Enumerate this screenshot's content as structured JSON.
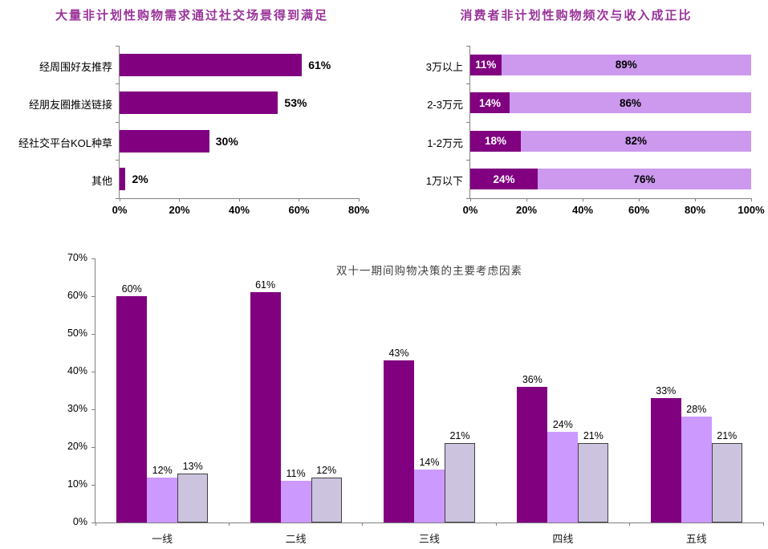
{
  "colors": {
    "chart_title_purple": "#993399",
    "dark_purple": "#800080",
    "light_purple": "#CC99FF",
    "stacked_light_purple": "#CC99EE",
    "gray_lavender": "#CCC3DF",
    "gray_bar_border": "#404040",
    "axis_gray": "#808080",
    "bottom_title_gray": "#404040",
    "label_black": "#000000"
  },
  "chart_data": [
    {
      "type": "bar",
      "orientation": "horizontal",
      "title": "大量非计划性购物需求通过社交场景得到满足",
      "categories": [
        "经周围好友推荐",
        "经朋友圈推送链接",
        "经社交平台KOL种草",
        "其他"
      ],
      "values": [
        61,
        53,
        30,
        2
      ],
      "value_labels": [
        "61%",
        "53%",
        "30%",
        "2%"
      ],
      "xlim": [
        0,
        80
      ],
      "x_tick_labels": [
        "0%",
        "20%",
        "40%",
        "60%",
        "80%"
      ],
      "bar_color": "#800080",
      "grid": false,
      "legend": false
    },
    {
      "type": "bar",
      "orientation": "horizontal-stacked",
      "title": "消费者非计划性购物频次与收入成正比",
      "categories": [
        "3万以上",
        "2-3万元",
        "1-2万元",
        "1万以下"
      ],
      "series": [
        {
          "name": "series_1",
          "values": [
            11,
            14,
            18,
            24
          ],
          "value_labels": [
            "11%",
            "14%",
            "18%",
            "24%"
          ],
          "color": "#800080",
          "text_color": "#FFFFFF"
        },
        {
          "name": "series_2",
          "values": [
            89,
            86,
            82,
            76
          ],
          "value_labels": [
            "89%",
            "86%",
            "82%",
            "76%"
          ],
          "color": "#CC99EE",
          "text_color": "#000000"
        }
      ],
      "xlim": [
        0,
        100
      ],
      "x_tick_labels": [
        "0%",
        "20%",
        "40%",
        "60%",
        "80%",
        "100%"
      ],
      "grid": false,
      "legend": false
    },
    {
      "type": "bar",
      "orientation": "vertical-grouped",
      "title": "双十一期间购物决策的主要考虑因素",
      "categories": [
        "一线",
        "二线",
        "三线",
        "四线",
        "五线"
      ],
      "series": [
        {
          "name": "series_1",
          "values": [
            60,
            61,
            43,
            36,
            33
          ],
          "value_labels": [
            "60%",
            "61%",
            "43%",
            "36%",
            "33%"
          ],
          "color": "#800080"
        },
        {
          "name": "series_2",
          "values": [
            12,
            11,
            14,
            24,
            28
          ],
          "value_labels": [
            "12%",
            "11%",
            "14%",
            "24%",
            "28%"
          ],
          "color": "#CC99FF"
        },
        {
          "name": "series_3",
          "values": [
            13,
            12,
            21,
            21,
            21
          ],
          "value_labels": [
            "13%",
            "12%",
            "21%",
            "21%",
            "21%"
          ],
          "color": "#CCC3DF",
          "border_color": "#404040"
        }
      ],
      "ylim": [
        0,
        70
      ],
      "y_tick_labels": [
        "0%",
        "10%",
        "20%",
        "30%",
        "40%",
        "50%",
        "60%",
        "70%"
      ],
      "grid": false,
      "legend": false
    }
  ]
}
